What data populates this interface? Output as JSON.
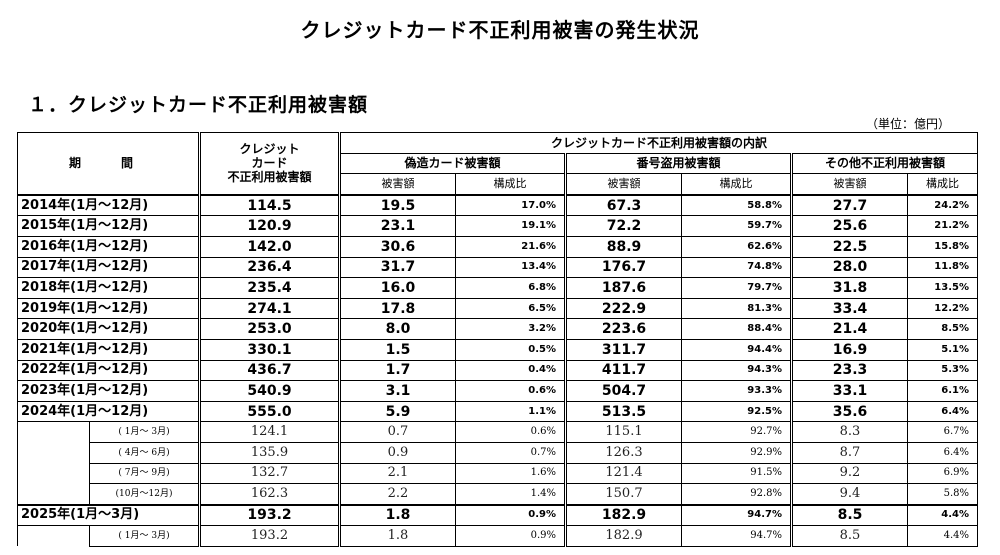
{
  "title": "クレジットカード不正利用被害の発生状況",
  "section_heading": "１．クレジットカード不正利用被害額",
  "unit": "（単位：億円）",
  "headers": {
    "period": "期　間",
    "total_line1": "クレジット",
    "total_line2": "カード",
    "total_line3": "不正利用被害額",
    "breakdown": "クレジットカード不正利用被害額の内訳",
    "forgery": "偽造カード被害額",
    "number_theft": "番号盗用被害額",
    "other": "その他不正利用被害額",
    "damage": "被害額",
    "ratio": "構成比"
  },
  "rows": [
    {
      "period": "2014年(1月～12月)",
      "total": "114.5",
      "forgery": "19.5",
      "forgery_pct": "17.0%",
      "theft": "67.3",
      "theft_pct": "58.8%",
      "other": "27.7",
      "other_pct": "24.2%"
    },
    {
      "period": "2015年(1月～12月)",
      "total": "120.9",
      "forgery": "23.1",
      "forgery_pct": "19.1%",
      "theft": "72.2",
      "theft_pct": "59.7%",
      "other": "25.6",
      "other_pct": "21.2%"
    },
    {
      "period": "2016年(1月～12月)",
      "total": "142.0",
      "forgery": "30.6",
      "forgery_pct": "21.6%",
      "theft": "88.9",
      "theft_pct": "62.6%",
      "other": "22.5",
      "other_pct": "15.8%"
    },
    {
      "period": "2017年(1月～12月)",
      "total": "236.4",
      "forgery": "31.7",
      "forgery_pct": "13.4%",
      "theft": "176.7",
      "theft_pct": "74.8%",
      "other": "28.0",
      "other_pct": "11.8%"
    },
    {
      "period": "2018年(1月～12月)",
      "total": "235.4",
      "forgery": "16.0",
      "forgery_pct": "6.8%",
      "theft": "187.6",
      "theft_pct": "79.7%",
      "other": "31.8",
      "other_pct": "13.5%"
    },
    {
      "period": "2019年(1月～12月)",
      "total": "274.1",
      "forgery": "17.8",
      "forgery_pct": "6.5%",
      "theft": "222.9",
      "theft_pct": "81.3%",
      "other": "33.4",
      "other_pct": "12.2%"
    },
    {
      "period": "2020年(1月～12月)",
      "total": "253.0",
      "forgery": "8.0",
      "forgery_pct": "3.2%",
      "theft": "223.6",
      "theft_pct": "88.4%",
      "other": "21.4",
      "other_pct": "8.5%"
    },
    {
      "period": "2021年(1月～12月)",
      "total": "330.1",
      "forgery": "1.5",
      "forgery_pct": "0.5%",
      "theft": "311.7",
      "theft_pct": "94.4%",
      "other": "16.9",
      "other_pct": "5.1%"
    },
    {
      "period": "2022年(1月～12月)",
      "total": "436.7",
      "forgery": "1.7",
      "forgery_pct": "0.4%",
      "theft": "411.7",
      "theft_pct": "94.3%",
      "other": "23.3",
      "other_pct": "5.3%"
    },
    {
      "period": "2023年(1月～12月)",
      "total": "540.9",
      "forgery": "3.1",
      "forgery_pct": "0.6%",
      "theft": "504.7",
      "theft_pct": "93.3%",
      "other": "33.1",
      "other_pct": "6.1%"
    },
    {
      "period": "2024年(1月～12月)",
      "total": "555.0",
      "forgery": "5.9",
      "forgery_pct": "1.1%",
      "theft": "513.5",
      "theft_pct": "92.5%",
      "other": "35.6",
      "other_pct": "6.4%"
    }
  ],
  "quarters_2024": [
    {
      "period": "( 1月～ 3月)",
      "total": "124.1",
      "forgery": "0.7",
      "forgery_pct": "0.6%",
      "theft": "115.1",
      "theft_pct": "92.7%",
      "other": "8.3",
      "other_pct": "6.7%"
    },
    {
      "period": "( 4月～ 6月)",
      "total": "135.9",
      "forgery": "0.9",
      "forgery_pct": "0.7%",
      "theft": "126.3",
      "theft_pct": "92.9%",
      "other": "8.7",
      "other_pct": "6.4%"
    },
    {
      "period": "( 7月～ 9月)",
      "total": "132.7",
      "forgery": "2.1",
      "forgery_pct": "1.6%",
      "theft": "121.4",
      "theft_pct": "91.5%",
      "other": "9.2",
      "other_pct": "6.9%"
    },
    {
      "period": "(10月～12月)",
      "total": "162.3",
      "forgery": "2.2",
      "forgery_pct": "1.4%",
      "theft": "150.7",
      "theft_pct": "92.8%",
      "other": "9.4",
      "other_pct": "5.8%"
    }
  ],
  "row_2025": {
    "period": "2025年(1月～3月)",
    "total": "193.2",
    "forgery": "1.8",
    "forgery_pct": "0.9%",
    "theft": "182.9",
    "theft_pct": "94.7%",
    "other": "8.5",
    "other_pct": "4.4%"
  },
  "quarters_2025": [
    {
      "period": "( 1月～ 3月)",
      "total": "193.2",
      "forgery": "1.8",
      "forgery_pct": "0.9%",
      "theft": "182.9",
      "theft_pct": "94.7%",
      "other": "8.5",
      "other_pct": "4.4%"
    }
  ]
}
